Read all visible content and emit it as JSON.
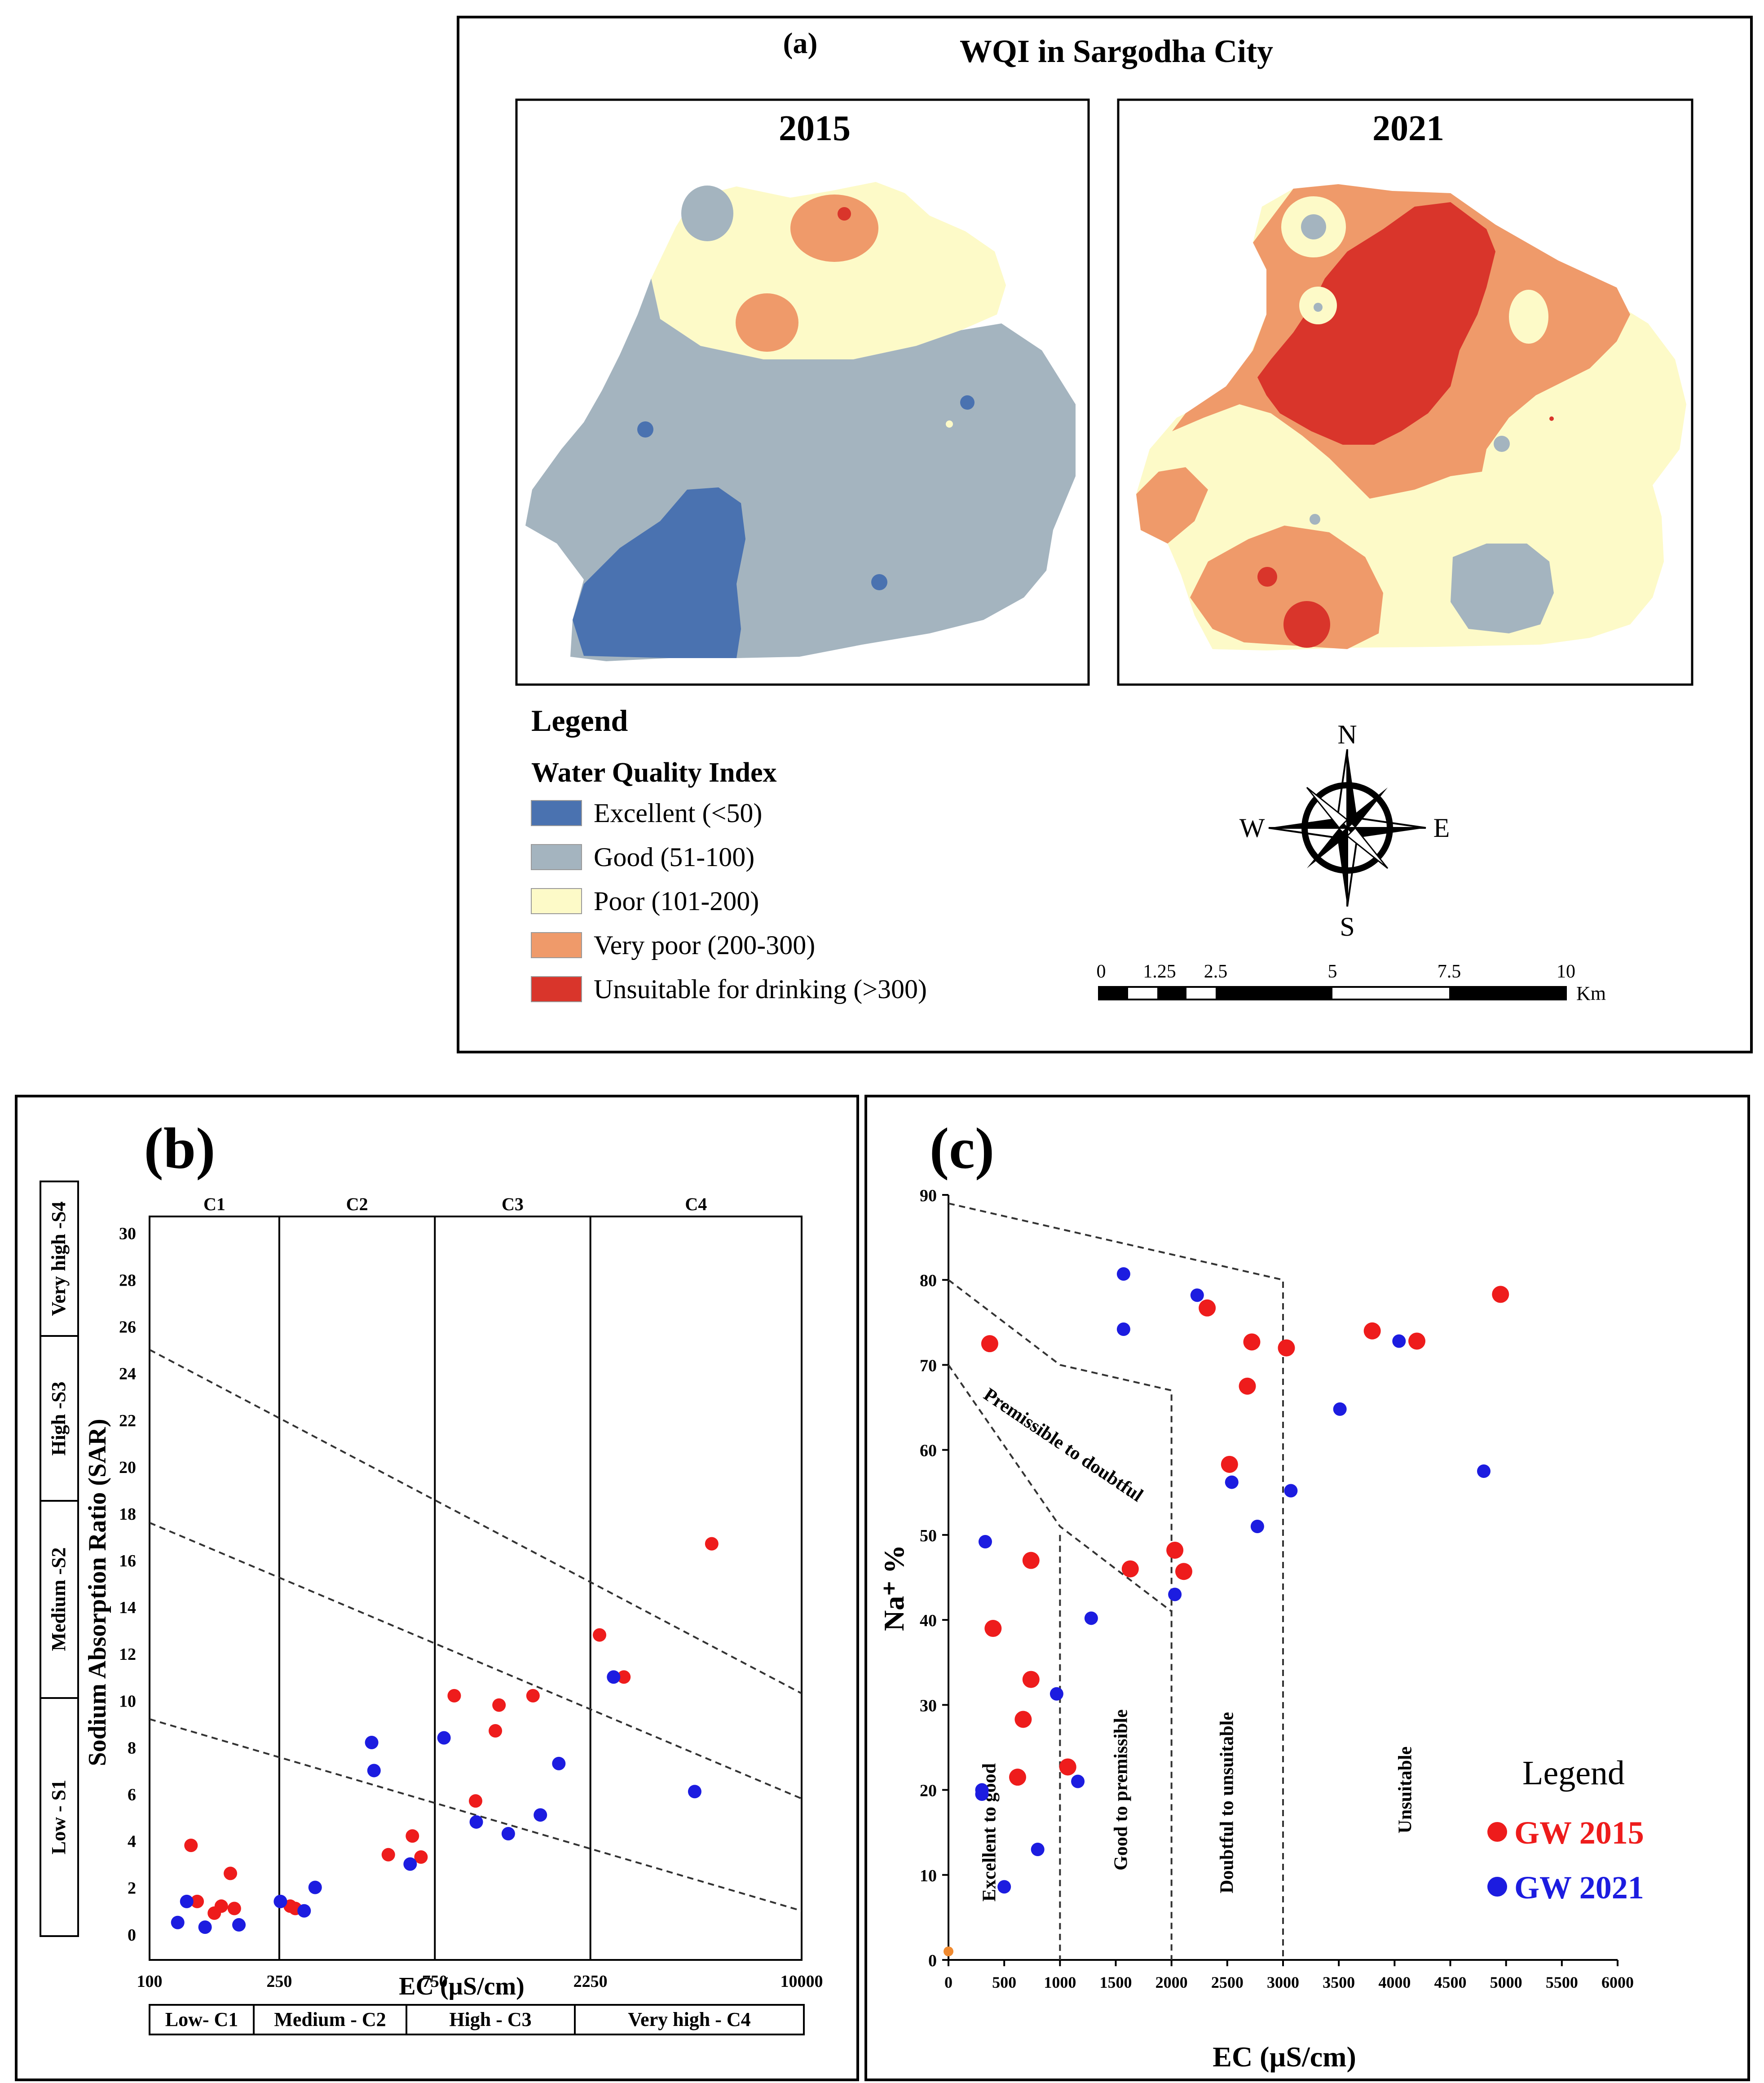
{
  "panel_a": {
    "label": "(a)",
    "title": "WQI in Sargodha City",
    "map_left_title": "2015",
    "map_right_title": "2021",
    "legend_heading": "Legend",
    "legend_subheading": "Water Quality Index",
    "legend_items": [
      {
        "label": "Excellent (<50)",
        "color": "#4a72b0"
      },
      {
        "label": "Good (51-100)",
        "color": "#a4b4bf"
      },
      {
        "label": "Poor (101-200)",
        "color": "#fdfac8"
      },
      {
        "label": "Very poor (200-300)",
        "color": "#ef9a6a"
      },
      {
        "label": "Unsuitable for drinking (>300)",
        "color": "#d9352b"
      }
    ],
    "compass": {
      "n": "N",
      "s": "S",
      "e": "E",
      "w": "W"
    },
    "scale_labels": [
      "0",
      "1.25",
      "2.5",
      "5",
      "7.5",
      "10"
    ],
    "scale_unit": "Km"
  },
  "chart_data": [
    {
      "type": "scatter",
      "panel_label": "(b)",
      "xlabel": "EC (µS/cm)",
      "ylabel": "Sodium Absorption Ratio (SAR)",
      "xscale": "log",
      "xlim": [
        100,
        10000
      ],
      "ylim": [
        0,
        30
      ],
      "x_ticks": [
        "100",
        "250",
        "750",
        "2250",
        "10000"
      ],
      "y_ticks": [
        "0",
        "2",
        "4",
        "6",
        "8",
        "10",
        "12",
        "14",
        "16",
        "18",
        "20",
        "22",
        "24",
        "26",
        "28",
        "30"
      ],
      "zone_top_labels": [
        "C1",
        "C2",
        "C3",
        "C4"
      ],
      "zone_bottom_labels": [
        "Low- C1",
        "Medium - C2",
        "High - C3",
        "Very high - C4"
      ],
      "zone_left_labels": [
        "Low - S1",
        "Medium -S2",
        "High -S3",
        "Very high -S4"
      ],
      "boundaries_x": [
        250,
        750,
        2250
      ],
      "sar_lines": [
        {
          "from": [
            100,
            9.2
          ],
          "to": [
            10000,
            1.0
          ]
        },
        {
          "from": [
            100,
            17.6
          ],
          "to": [
            10000,
            5.8
          ]
        },
        {
          "from": [
            100,
            25.0
          ],
          "to": [
            10000,
            10.3
          ]
        }
      ],
      "series": [
        {
          "name": "GW 2015",
          "color": "#ee1c1c",
          "points": [
            [
              134,
              3.8
            ],
            [
              140,
              1.4
            ],
            [
              158,
              0.9
            ],
            [
              166,
              1.2
            ],
            [
              177,
              2.6
            ],
            [
              182,
              1.1
            ],
            [
              270,
              1.2
            ],
            [
              280,
              1.1
            ],
            [
              540,
              3.4
            ],
            [
              640,
              4.2
            ],
            [
              680,
              3.3
            ],
            [
              860,
              10.2
            ],
            [
              1000,
              5.7
            ],
            [
              1150,
              8.7
            ],
            [
              1180,
              9.8
            ],
            [
              1500,
              10.2
            ],
            [
              2400,
              12.8
            ],
            [
              2850,
              11.0
            ],
            [
              5300,
              16.7
            ]
          ]
        },
        {
          "name": "GW 2021",
          "color": "#1c1ce0",
          "points": [
            [
              122,
              0.5
            ],
            [
              130,
              1.4
            ],
            [
              148,
              0.3
            ],
            [
              188,
              0.4
            ],
            [
              252,
              1.4
            ],
            [
              298,
              1.0
            ],
            [
              322,
              2.0
            ],
            [
              480,
              8.2
            ],
            [
              488,
              7.0
            ],
            [
              630,
              3.0
            ],
            [
              800,
              8.4
            ],
            [
              1005,
              4.8
            ],
            [
              1260,
              4.3
            ],
            [
              1580,
              5.1
            ],
            [
              1800,
              7.3
            ],
            [
              2650,
              11.0
            ],
            [
              4700,
              6.1
            ]
          ]
        }
      ]
    },
    {
      "type": "scatter",
      "panel_label": "(c)",
      "xlabel": "EC (µS/cm)",
      "ylabel": "Na⁺ %",
      "xlim": [
        0,
        6000
      ],
      "ylim": [
        0,
        90
      ],
      "x_ticks": [
        "0",
        "500",
        "1000",
        "1500",
        "2000",
        "2500",
        "3000",
        "3500",
        "4000",
        "4500",
        "5000",
        "5500",
        "6000"
      ],
      "y_ticks": [
        "0",
        "10",
        "20",
        "30",
        "40",
        "50",
        "60",
        "70",
        "80",
        "90"
      ],
      "zone_labels": [
        "Premissible to doubtful",
        "Excellent to good",
        "Good to premissible",
        "Doubtful to unsuitable",
        "Unsuitable"
      ],
      "legend_title": "Legend",
      "series": [
        {
          "name": "GW 2015",
          "color": "#ee1c1c",
          "points": [
            [
              0,
              1
            ],
            [
              370,
              72.5
            ],
            [
              400,
              39
            ],
            [
              620,
              21.5
            ],
            [
              670,
              28.3
            ],
            [
              740,
              33
            ],
            [
              740,
              47
            ],
            [
              1070,
              22.7
            ],
            [
              1630,
              46
            ],
            [
              2030,
              48.2
            ],
            [
              2110,
              45.7
            ],
            [
              2320,
              76.7
            ],
            [
              2520,
              58.3
            ],
            [
              2680,
              67.5
            ],
            [
              2720,
              72.7
            ],
            [
              3030,
              72
            ],
            [
              3800,
              74
            ],
            [
              4200,
              72.8
            ],
            [
              4950,
              78.3
            ]
          ]
        },
        {
          "name": "GW 2021",
          "color": "#1c1ce0",
          "points": [
            [
              300,
              20
            ],
            [
              300,
              19.5
            ],
            [
              330,
              49.2
            ],
            [
              500,
              8.6
            ],
            [
              800,
              13
            ],
            [
              970,
              31.3
            ],
            [
              1160,
              21
            ],
            [
              1280,
              40.2
            ],
            [
              1570,
              80.7
            ],
            [
              1570,
              74.2
            ],
            [
              2030,
              43
            ],
            [
              2230,
              78.2
            ],
            [
              2540,
              56.2
            ],
            [
              2770,
              51
            ],
            [
              3070,
              55.2
            ],
            [
              3510,
              64.8
            ],
            [
              4040,
              72.8
            ],
            [
              4800,
              57.5
            ]
          ]
        }
      ]
    }
  ]
}
